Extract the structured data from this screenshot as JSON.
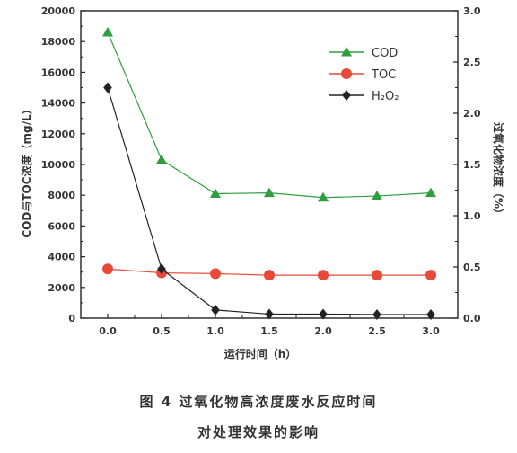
{
  "chart_data": {
    "type": "line",
    "x": [
      0.0,
      0.5,
      1.0,
      1.5,
      2.0,
      2.5,
      3.0
    ],
    "x_tick_labels": [
      "0.0",
      "0.5",
      "1.0",
      "1.5",
      "2.0",
      "2.5",
      "3.0"
    ],
    "xlabel": "运行时间（h）",
    "xlim": [
      -0.25,
      3.25
    ],
    "ylabel_left": "COD与TOC浓度（mg/L）",
    "ylim_left": [
      0,
      20000
    ],
    "y_left_ticks": [
      "0",
      "2000",
      "4000",
      "6000",
      "8000",
      "10000",
      "12000",
      "14000",
      "16000",
      "18000",
      "20000"
    ],
    "ylabel_right": "过氧化物浓度（%）",
    "ylim_right": [
      0,
      3.0
    ],
    "y_right_ticks": [
      "0.0",
      "0.5",
      "1.0",
      "1.5",
      "2.0",
      "2.5",
      "3.0"
    ],
    "legend_position": "top-right",
    "grid": false,
    "series": [
      {
        "name": "COD",
        "axis": "left",
        "marker": "triangle",
        "color": "#2e9e3e",
        "values": [
          18600,
          10300,
          8100,
          8150,
          7850,
          7950,
          8150
        ]
      },
      {
        "name": "TOC",
        "axis": "left",
        "marker": "circle",
        "color": "#e84a3a",
        "values": [
          3200,
          2950,
          2900,
          2800,
          2800,
          2800,
          2800
        ]
      },
      {
        "name": "H₂O₂",
        "axis": "right",
        "marker": "diamond",
        "color": "#222222",
        "values": [
          2.25,
          0.48,
          0.08,
          0.04,
          0.04,
          0.035,
          0.035
        ]
      }
    ]
  },
  "caption": {
    "line1": "图 4  过氧化物高浓度废水反应时间",
    "line2": "对处理效果的影响"
  }
}
